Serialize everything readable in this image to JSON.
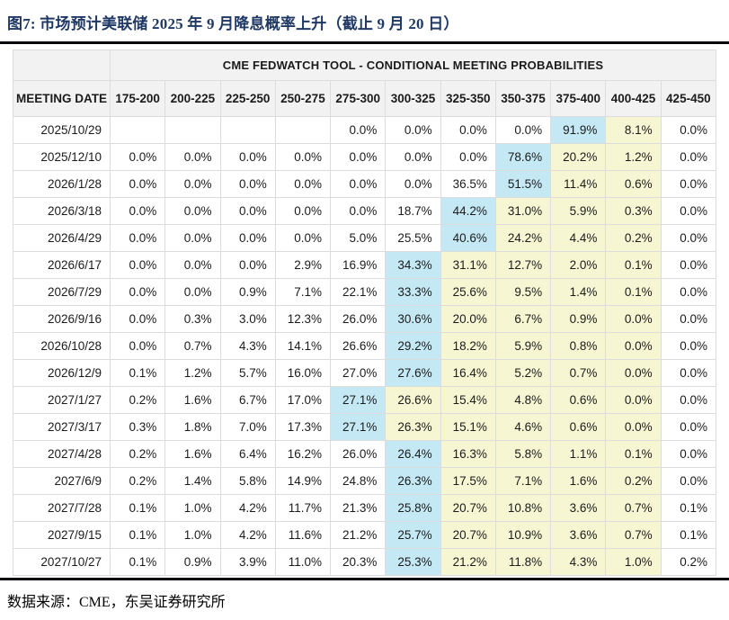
{
  "figure": {
    "title": "图7:  市场预计美联储 2025 年 9 月降息概率上升（截止 9 月 20 日）",
    "source": "数据来源：CME，东吴证券研究所"
  },
  "colors": {
    "title_navy": "#1f3864",
    "highlight_blue": "#c4e9f5",
    "highlight_yellow": "#f6f6d3",
    "header_bg": "#f2f2f2",
    "grid_line": "#dcdcdc"
  },
  "chart_data": {
    "type": "table",
    "title": "CME FEDWATCH TOOL - CONDITIONAL MEETING PROBABILITIES",
    "columns": [
      "MEETING DATE",
      "175-200",
      "200-225",
      "225-250",
      "250-275",
      "275-300",
      "300-325",
      "325-350",
      "350-375",
      "375-400",
      "400-425",
      "425-450"
    ],
    "highlight_legend": {
      "blue_col": "index into values[] of the most-likely (blue) cell",
      "yellow_cols": "[startIndex, endIndex] range of pale-yellow cells"
    },
    "rows": [
      {
        "date": "2025/10/29",
        "values": [
          "",
          "",
          "",
          "",
          "0.0%",
          "0.0%",
          "0.0%",
          "0.0%",
          "91.9%",
          "8.1%",
          "0.0%"
        ],
        "blue_col": 8,
        "yellow_cols": [
          9,
          9
        ]
      },
      {
        "date": "2025/12/10",
        "values": [
          "0.0%",
          "0.0%",
          "0.0%",
          "0.0%",
          "0.0%",
          "0.0%",
          "0.0%",
          "78.6%",
          "20.2%",
          "1.2%",
          "0.0%"
        ],
        "blue_col": 7,
        "yellow_cols": [
          8,
          9
        ]
      },
      {
        "date": "2026/1/28",
        "values": [
          "0.0%",
          "0.0%",
          "0.0%",
          "0.0%",
          "0.0%",
          "0.0%",
          "36.5%",
          "51.5%",
          "11.4%",
          "0.6%",
          "0.0%"
        ],
        "blue_col": 7,
        "yellow_cols": [
          8,
          9
        ]
      },
      {
        "date": "2026/3/18",
        "values": [
          "0.0%",
          "0.0%",
          "0.0%",
          "0.0%",
          "0.0%",
          "18.7%",
          "44.2%",
          "31.0%",
          "5.9%",
          "0.3%",
          "0.0%"
        ],
        "blue_col": 6,
        "yellow_cols": [
          7,
          9
        ]
      },
      {
        "date": "2026/4/29",
        "values": [
          "0.0%",
          "0.0%",
          "0.0%",
          "0.0%",
          "5.0%",
          "25.5%",
          "40.6%",
          "24.2%",
          "4.4%",
          "0.2%",
          "0.0%"
        ],
        "blue_col": 6,
        "yellow_cols": [
          7,
          9
        ]
      },
      {
        "date": "2026/6/17",
        "values": [
          "0.0%",
          "0.0%",
          "0.0%",
          "2.9%",
          "16.9%",
          "34.3%",
          "31.1%",
          "12.7%",
          "2.0%",
          "0.1%",
          "0.0%"
        ],
        "blue_col": 5,
        "yellow_cols": [
          6,
          9
        ]
      },
      {
        "date": "2026/7/29",
        "values": [
          "0.0%",
          "0.0%",
          "0.9%",
          "7.1%",
          "22.1%",
          "33.3%",
          "25.6%",
          "9.5%",
          "1.4%",
          "0.1%",
          "0.0%"
        ],
        "blue_col": 5,
        "yellow_cols": [
          6,
          9
        ]
      },
      {
        "date": "2026/9/16",
        "values": [
          "0.0%",
          "0.3%",
          "3.0%",
          "12.3%",
          "26.0%",
          "30.6%",
          "20.0%",
          "6.7%",
          "0.9%",
          "0.0%",
          "0.0%"
        ],
        "blue_col": 5,
        "yellow_cols": [
          6,
          9
        ]
      },
      {
        "date": "2026/10/28",
        "values": [
          "0.0%",
          "0.7%",
          "4.3%",
          "14.1%",
          "26.6%",
          "29.2%",
          "18.2%",
          "5.9%",
          "0.8%",
          "0.0%",
          "0.0%"
        ],
        "blue_col": 5,
        "yellow_cols": [
          6,
          9
        ]
      },
      {
        "date": "2026/12/9",
        "values": [
          "0.1%",
          "1.2%",
          "5.7%",
          "16.0%",
          "27.0%",
          "27.6%",
          "16.4%",
          "5.2%",
          "0.7%",
          "0.0%",
          "0.0%"
        ],
        "blue_col": 5,
        "yellow_cols": [
          6,
          9
        ]
      },
      {
        "date": "2027/1/27",
        "values": [
          "0.2%",
          "1.6%",
          "6.7%",
          "17.0%",
          "27.1%",
          "26.6%",
          "15.4%",
          "4.8%",
          "0.6%",
          "0.0%",
          "0.0%"
        ],
        "blue_col": 4,
        "yellow_cols": [
          5,
          9
        ]
      },
      {
        "date": "2027/3/17",
        "values": [
          "0.3%",
          "1.8%",
          "7.0%",
          "17.3%",
          "27.1%",
          "26.3%",
          "15.1%",
          "4.6%",
          "0.6%",
          "0.0%",
          "0.0%"
        ],
        "blue_col": 4,
        "yellow_cols": [
          5,
          9
        ]
      },
      {
        "date": "2027/4/28",
        "values": [
          "0.2%",
          "1.6%",
          "6.4%",
          "16.2%",
          "26.0%",
          "26.4%",
          "16.3%",
          "5.8%",
          "1.1%",
          "0.1%",
          "0.0%"
        ],
        "blue_col": 5,
        "yellow_cols": [
          6,
          9
        ]
      },
      {
        "date": "2027/6/9",
        "values": [
          "0.2%",
          "1.4%",
          "5.8%",
          "14.9%",
          "24.8%",
          "26.3%",
          "17.5%",
          "7.1%",
          "1.6%",
          "0.2%",
          "0.0%"
        ],
        "blue_col": 5,
        "yellow_cols": [
          6,
          9
        ]
      },
      {
        "date": "2027/7/28",
        "values": [
          "0.1%",
          "1.0%",
          "4.2%",
          "11.7%",
          "21.3%",
          "25.8%",
          "20.7%",
          "10.8%",
          "3.6%",
          "0.7%",
          "0.1%"
        ],
        "blue_col": 5,
        "yellow_cols": [
          6,
          9
        ]
      },
      {
        "date": "2027/9/15",
        "values": [
          "0.1%",
          "1.0%",
          "4.2%",
          "11.6%",
          "21.2%",
          "25.7%",
          "20.7%",
          "10.9%",
          "3.6%",
          "0.7%",
          "0.1%"
        ],
        "blue_col": 5,
        "yellow_cols": [
          6,
          9
        ]
      },
      {
        "date": "2027/10/27",
        "values": [
          "0.1%",
          "0.9%",
          "3.9%",
          "11.0%",
          "20.3%",
          "25.3%",
          "21.2%",
          "11.8%",
          "4.3%",
          "1.0%",
          "0.2%"
        ],
        "blue_col": 5,
        "yellow_cols": [
          6,
          9
        ]
      }
    ]
  }
}
